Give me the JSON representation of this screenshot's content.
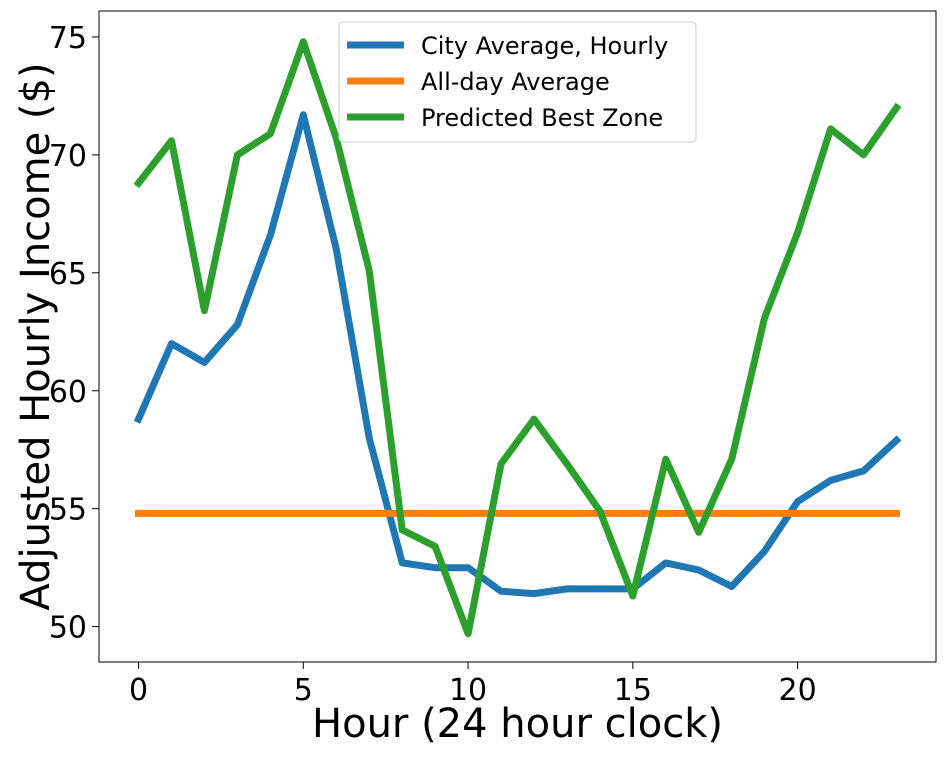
{
  "chart_data": {
    "type": "line",
    "title": "",
    "xlabel": "Hour (24 hour clock)",
    "ylabel": "Adjusted Hourly Income ($)",
    "xlim": [
      -1.2,
      24.2
    ],
    "ylim": [
      48.5,
      76.1
    ],
    "xticks": [
      0,
      5,
      10,
      15,
      20
    ],
    "yticks": [
      50,
      55,
      60,
      65,
      70,
      75
    ],
    "grid": false,
    "legend_position": "upper center",
    "x": [
      0,
      1,
      2,
      3,
      4,
      5,
      6,
      7,
      8,
      9,
      10,
      11,
      12,
      13,
      14,
      15,
      16,
      17,
      18,
      19,
      20,
      21,
      22,
      23
    ],
    "series": [
      {
        "name": "City Average, Hourly",
        "color": "#1f77b4",
        "values": [
          58.8,
          62.0,
          61.2,
          62.8,
          66.6,
          71.7,
          66.0,
          58.0,
          52.7,
          52.5,
          52.5,
          51.5,
          51.4,
          51.6,
          51.6,
          51.6,
          52.7,
          52.4,
          51.7,
          53.2,
          55.3,
          56.2,
          56.6,
          57.9
        ]
      },
      {
        "name": "All-day Average",
        "color": "#ff7f0e",
        "values": [
          54.8,
          54.8,
          54.8,
          54.8,
          54.8,
          54.8,
          54.8,
          54.8,
          54.8,
          54.8,
          54.8,
          54.8,
          54.8,
          54.8,
          54.8,
          54.8,
          54.8,
          54.8,
          54.8,
          54.8,
          54.8,
          54.8,
          54.8,
          54.8
        ]
      },
      {
        "name": "Predicted Best Zone",
        "color": "#2ca02c",
        "values": [
          68.8,
          70.6,
          63.4,
          70.0,
          70.9,
          74.8,
          70.7,
          65.1,
          54.1,
          53.4,
          49.7,
          56.9,
          58.8,
          56.9,
          54.9,
          51.3,
          57.1,
          54.0,
          57.1,
          63.1,
          66.7,
          71.1,
          70.0,
          72.0
        ]
      }
    ]
  }
}
